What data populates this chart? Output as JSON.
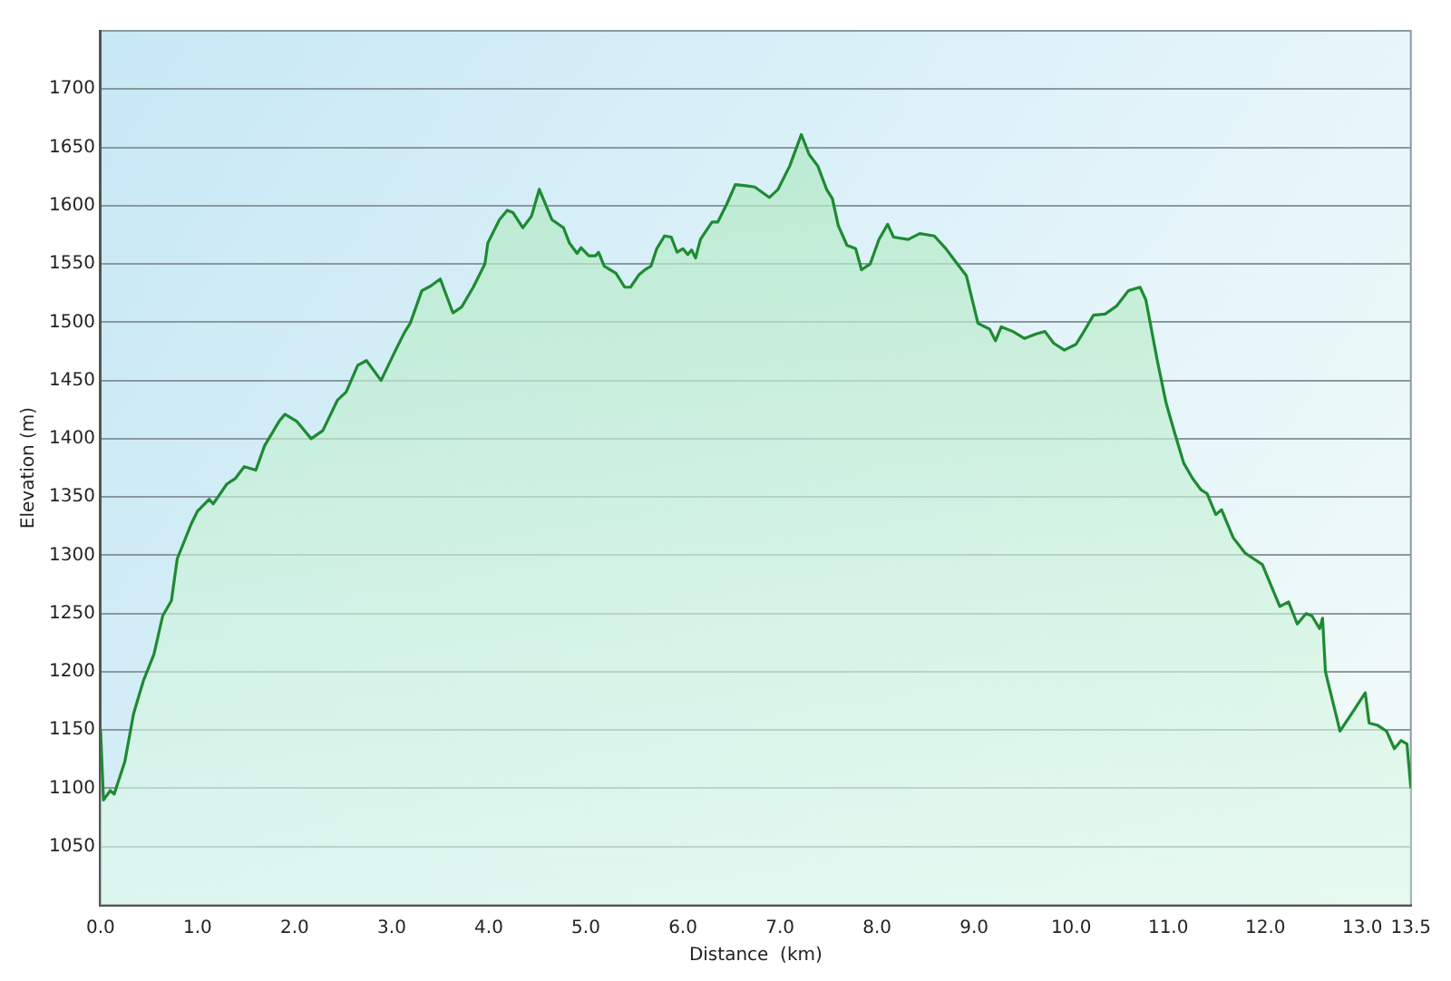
{
  "chart_data": {
    "type": "area",
    "xlabel": "Distance  (km)",
    "ylabel": "Elevation (m)",
    "xlim": [
      0,
      13.5
    ],
    "ylim": [
      1000,
      1750
    ],
    "xticks": [
      {
        "value": 0,
        "label": "0.0"
      },
      {
        "value": 1,
        "label": "1.0"
      },
      {
        "value": 2,
        "label": "2.0"
      },
      {
        "value": 3,
        "label": "3.0"
      },
      {
        "value": 4,
        "label": "4.0"
      },
      {
        "value": 5,
        "label": "5.0"
      },
      {
        "value": 6,
        "label": "6.0"
      },
      {
        "value": 7,
        "label": "7.0"
      },
      {
        "value": 8,
        "label": "8.0"
      },
      {
        "value": 9,
        "label": "9.0"
      },
      {
        "value": 10,
        "label": "10.0"
      },
      {
        "value": 11,
        "label": "11.0"
      },
      {
        "value": 12,
        "label": "12.0"
      },
      {
        "value": 13,
        "label": "13.0"
      },
      {
        "value": 13.5,
        "label": "13.5"
      }
    ],
    "yticks": [
      1050,
      1100,
      1150,
      1200,
      1250,
      1300,
      1350,
      1400,
      1450,
      1500,
      1550,
      1600,
      1650,
      1700
    ],
    "grid": "y",
    "legend": false,
    "series": [
      {
        "color": "#1e8a32",
        "x": [
          0,
          0.03,
          0.1,
          0.14,
          0.25,
          0.34,
          0.44,
          0.55,
          0.64,
          0.73,
          0.79,
          0.94,
          1.0,
          1.12,
          1.16,
          1.3,
          1.39,
          1.48,
          1.6,
          1.69,
          1.84,
          1.9,
          2.02,
          2.17,
          2.29,
          2.44,
          2.53,
          2.65,
          2.74,
          2.89,
          3.04,
          3.13,
          3.19,
          3.31,
          3.4,
          3.5,
          3.63,
          3.72,
          3.84,
          3.96,
          3.99,
          4.11,
          4.19,
          4.25,
          4.35,
          4.44,
          4.52,
          4.65,
          4.77,
          4.83,
          4.91,
          4.95,
          5.03,
          5.1,
          5.13,
          5.19,
          5.31,
          5.4,
          5.46,
          5.55,
          5.61,
          5.67,
          5.73,
          5.81,
          5.88,
          5.94,
          6.0,
          6.05,
          6.09,
          6.13,
          6.18,
          6.3,
          6.36,
          6.45,
          6.54,
          6.65,
          6.74,
          6.89,
          6.98,
          7.1,
          7.22,
          7.3,
          7.39,
          7.48,
          7.54,
          7.6,
          7.69,
          7.78,
          7.84,
          7.93,
          8.02,
          8.11,
          8.17,
          8.32,
          8.44,
          8.59,
          8.71,
          8.8,
          8.92,
          9.04,
          9.16,
          9.22,
          9.28,
          9.4,
          9.52,
          9.64,
          9.73,
          9.82,
          9.93,
          10.05,
          10.11,
          10.23,
          10.35,
          10.47,
          10.59,
          10.71,
          10.77,
          10.89,
          10.98,
          11.07,
          11.16,
          11.25,
          11.34,
          11.4,
          11.49,
          11.55,
          11.67,
          11.79,
          11.88,
          11.97,
          12.06,
          12.15,
          12.24,
          12.33,
          12.42,
          12.48,
          12.56,
          12.59,
          12.62,
          12.77,
          12.89,
          13.03,
          13.07,
          13.16,
          13.25,
          13.33,
          13.4,
          13.46,
          13.5
        ],
        "values": [
          1150,
          1090,
          1098,
          1095,
          1123,
          1164,
          1192,
          1215,
          1248,
          1261,
          1297,
          1328,
          1338,
          1348,
          1344,
          1361,
          1366,
          1376,
          1373,
          1394,
          1415,
          1421,
          1415,
          1400,
          1407,
          1433,
          1440,
          1463,
          1467,
          1450,
          1476,
          1491,
          1499,
          1527,
          1531,
          1537,
          1508,
          1513,
          1530,
          1550,
          1568,
          1588,
          1596,
          1594,
          1581,
          1591,
          1614,
          1588,
          1581,
          1568,
          1559,
          1564,
          1557,
          1557,
          1560,
          1548,
          1542,
          1530,
          1530,
          1541,
          1545,
          1548,
          1563,
          1574,
          1573,
          1560,
          1563,
          1558,
          1562,
          1555,
          1571,
          1586,
          1586,
          1601,
          1618,
          1617,
          1616,
          1607,
          1614,
          1634,
          1661,
          1644,
          1634,
          1614,
          1606,
          1583,
          1566,
          1563,
          1545,
          1550,
          1571,
          1584,
          1573,
          1571,
          1576,
          1574,
          1563,
          1553,
          1540,
          1499,
          1494,
          1484,
          1496,
          1492,
          1486,
          1490,
          1492,
          1482,
          1476,
          1481,
          1489,
          1506,
          1507,
          1514,
          1527,
          1530,
          1519,
          1466,
          1430,
          1404,
          1379,
          1366,
          1356,
          1353,
          1335,
          1339,
          1315,
          1302,
          1297,
          1292,
          1274,
          1256,
          1260,
          1241,
          1250,
          1248,
          1237,
          1246,
          1200,
          1149,
          1164,
          1182,
          1156,
          1154,
          1149,
          1134,
          1141,
          1138,
          1100
        ]
      }
    ]
  }
}
